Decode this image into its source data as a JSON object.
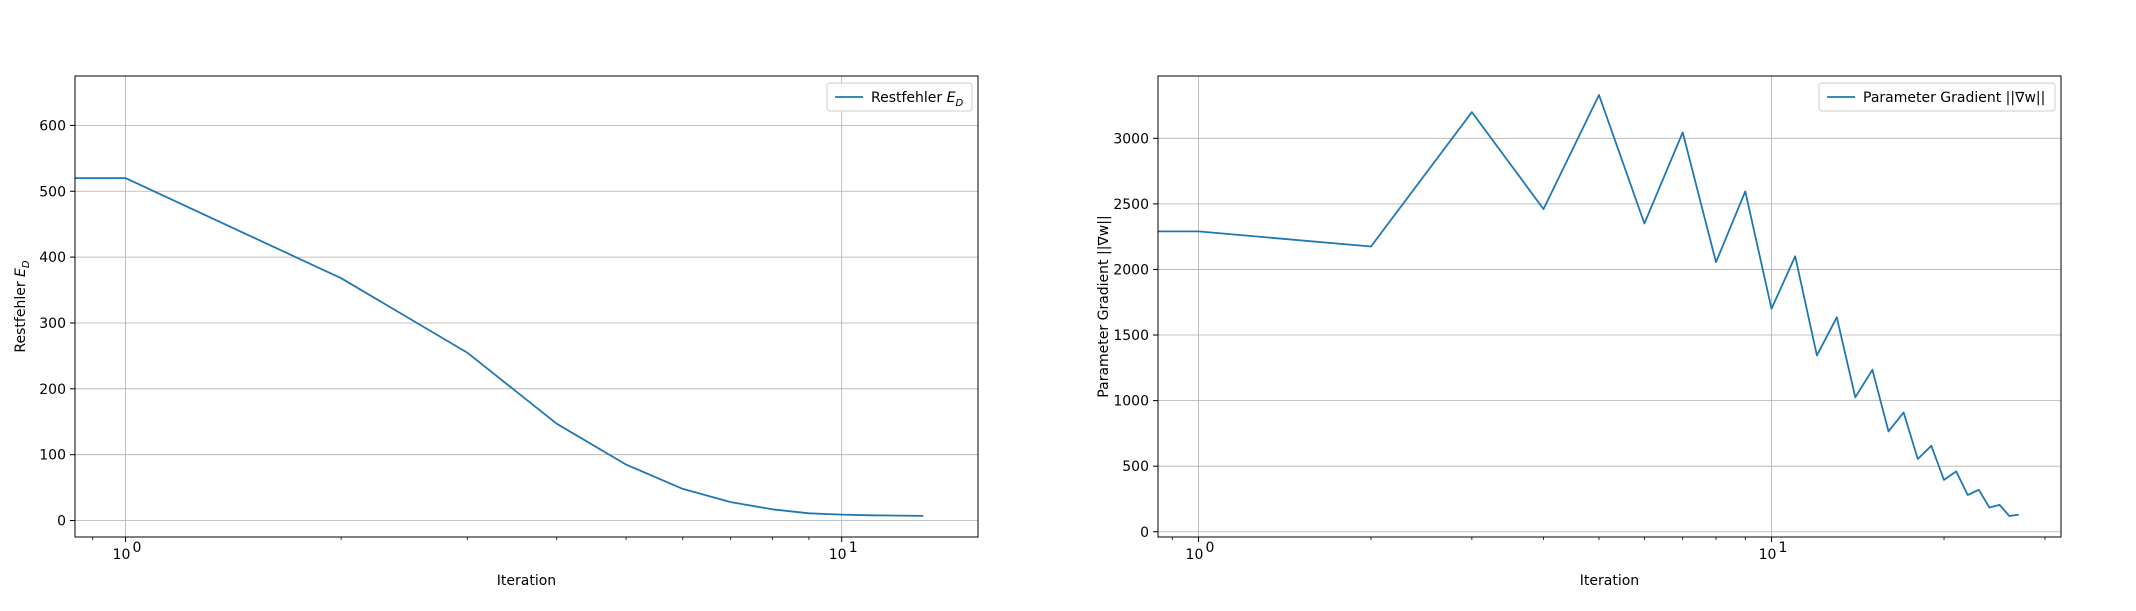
{
  "chart_data": [
    {
      "type": "line",
      "xscale": "log",
      "xlabel": "Iteration",
      "ylabel": "Restfehler",
      "ylabel_sub": "D",
      "xlim": [
        0.85,
        15.5
      ],
      "ylim": [
        -25,
        675
      ],
      "xticks": [
        {
          "value": 1,
          "label": "10",
          "exp": "0"
        },
        {
          "value": 10,
          "label": "10",
          "exp": "1"
        }
      ],
      "yticks": [
        0,
        100,
        200,
        300,
        400,
        500,
        600
      ],
      "grid": true,
      "legend_position": "top-right",
      "series": [
        {
          "name": "Restfehler",
          "name_sub": "D",
          "color": "#1f77b4",
          "x": [
            0,
            1,
            2,
            3,
            4,
            5,
            6,
            7,
            8,
            9,
            10,
            11,
            12,
            13
          ],
          "y": [
            520,
            520,
            368,
            255,
            147,
            85,
            48,
            28,
            17,
            11,
            9,
            8,
            7.5,
            7
          ]
        }
      ]
    },
    {
      "type": "line",
      "xscale": "log",
      "xlabel": "Iteration",
      "ylabel": "Parameter Gradient ||∇w||",
      "xlim": [
        0.85,
        32
      ],
      "ylim": [
        -40,
        3475
      ],
      "xticks": [
        {
          "value": 1,
          "label": "10",
          "exp": "0"
        },
        {
          "value": 10,
          "label": "10",
          "exp": "1"
        }
      ],
      "yticks": [
        0,
        500,
        1000,
        1500,
        2000,
        2500,
        3000
      ],
      "grid": true,
      "legend_position": "top-right",
      "series": [
        {
          "name": "Parameter Gradient ||∇w||",
          "color": "#1f77b4",
          "x": [
            0,
            1,
            2,
            3,
            4,
            5,
            6,
            7,
            8,
            9,
            10,
            11,
            12,
            13,
            14,
            15,
            16,
            17,
            18,
            19,
            20,
            21,
            22,
            23,
            24,
            25,
            26,
            27
          ],
          "y": [
            2290,
            2290,
            2175,
            3200,
            2460,
            3330,
            2350,
            3045,
            2055,
            2595,
            1700,
            2100,
            1345,
            1635,
            1025,
            1235,
            765,
            910,
            555,
            655,
            395,
            460,
            280,
            320,
            185,
            205,
            120,
            130
          ]
        }
      ]
    }
  ]
}
